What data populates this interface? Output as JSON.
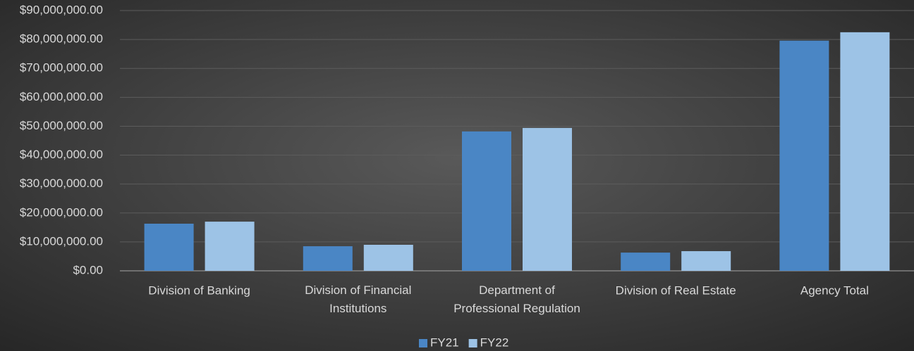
{
  "chart_data": {
    "type": "bar",
    "categories": [
      "Division of Banking",
      "Division of Financial Institutions",
      "Department of Professional Regulation",
      "Division of Real Estate",
      "Agency Total"
    ],
    "series": [
      {
        "name": "FY21",
        "color": "#4a86c5",
        "values": [
          16300000,
          8500000,
          48200000,
          6300000,
          79600000
        ]
      },
      {
        "name": "FY22",
        "color": "#9dc3e6",
        "values": [
          17000000,
          9000000,
          49400000,
          6800000,
          82500000
        ]
      }
    ],
    "ylim": [
      0,
      90000000
    ],
    "yticks": [
      {
        "value": 0,
        "label": "$0.00"
      },
      {
        "value": 10000000,
        "label": "$10,000,000.00"
      },
      {
        "value": 20000000,
        "label": "$20,000,000.00"
      },
      {
        "value": 30000000,
        "label": "$30,000,000.00"
      },
      {
        "value": 40000000,
        "label": "$40,000,000.00"
      },
      {
        "value": 50000000,
        "label": "$50,000,000.00"
      },
      {
        "value": 60000000,
        "label": "$60,000,000.00"
      },
      {
        "value": 70000000,
        "label": "$70,000,000.00"
      },
      {
        "value": 80000000,
        "label": "$80,000,000.00"
      },
      {
        "value": 90000000,
        "label": "$90,000,000.00"
      }
    ],
    "grid": true,
    "legend": "bottom"
  }
}
